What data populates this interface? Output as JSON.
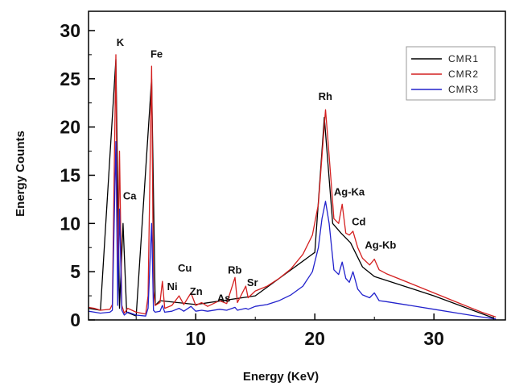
{
  "chart_data": {
    "type": "line",
    "title": "",
    "xlabel": "Energy (KeV)",
    "ylabel": "Energy Counts",
    "xlim": [
      1,
      36
    ],
    "ylim": [
      0,
      32
    ],
    "x_ticks": [
      10,
      20,
      30
    ],
    "y_ticks": [
      0,
      5,
      10,
      15,
      20,
      25,
      30
    ],
    "legend": {
      "position": "top-right",
      "entries": [
        "CMR1",
        "CMR2",
        "CMR3"
      ]
    },
    "colors": {
      "CMR1": "#000000",
      "CMR2": "#d42020",
      "CMR3": "#2222cc"
    },
    "series": [
      {
        "name": "CMR1",
        "x": [
          1,
          2,
          3.3,
          3.6,
          3.9,
          4.2,
          5,
          6.3,
          6.6,
          7,
          10,
          15,
          20,
          20.8,
          21.5,
          22.2,
          23,
          24,
          25,
          30,
          35
        ],
        "values": [
          1.2,
          1.0,
          27,
          1.2,
          10,
          0.8,
          0.4,
          25,
          1.5,
          2.0,
          1.6,
          2.5,
          7,
          21,
          10,
          9,
          8,
          5.5,
          4.5,
          2.5,
          0.2
        ]
      },
      {
        "name": "CMR2",
        "x": [
          1,
          1.5,
          2,
          2.8,
          3.0,
          3.3,
          3.45,
          3.6,
          3.8,
          4.0,
          4.3,
          5.0,
          5.8,
          6.0,
          6.3,
          6.45,
          6.6,
          7.0,
          7.2,
          7.4,
          8.0,
          8.6,
          9.0,
          9.6,
          10.0,
          10.5,
          11.0,
          12.0,
          12.6,
          13.3,
          13.5,
          14.2,
          14.4,
          15.0,
          16.0,
          17.0,
          18.0,
          19.0,
          19.8,
          20.3,
          20.6,
          20.9,
          21.2,
          21.6,
          22.0,
          22.3,
          22.6,
          22.9,
          23.2,
          23.6,
          24.0,
          24.6,
          25.0,
          25.4,
          26.0,
          28.0,
          30.0,
          32.0,
          34.0,
          35.2
        ],
        "values": [
          1.3,
          1.2,
          1.0,
          1.1,
          1.6,
          27.5,
          3.0,
          17.5,
          1.5,
          0.7,
          1.2,
          0.8,
          0.6,
          2.5,
          26.3,
          3.0,
          1.5,
          1.8,
          4.0,
          1.2,
          1.5,
          2.5,
          1.6,
          2.8,
          1.5,
          1.8,
          1.4,
          2.0,
          1.7,
          4.4,
          1.8,
          3.5,
          2.3,
          3.0,
          3.5,
          4.3,
          5.3,
          6.8,
          8.8,
          12.0,
          17.0,
          21.8,
          17.0,
          10.5,
          10.0,
          12.0,
          9.0,
          8.8,
          9.2,
          7.5,
          6.4,
          5.7,
          6.3,
          5.2,
          4.8,
          3.8,
          2.8,
          1.8,
          0.8,
          0.3
        ]
      },
      {
        "name": "CMR3",
        "x": [
          1,
          1.5,
          2,
          2.8,
          3.0,
          3.3,
          3.45,
          3.6,
          3.8,
          4.0,
          4.3,
          5.0,
          5.8,
          6.0,
          6.3,
          6.45,
          6.6,
          7.0,
          7.2,
          7.4,
          8.0,
          8.6,
          9.0,
          9.6,
          10.0,
          10.5,
          11.0,
          12.0,
          12.6,
          13.3,
          13.5,
          14.2,
          14.4,
          15.0,
          16.0,
          17.0,
          18.0,
          19.0,
          19.8,
          20.3,
          20.6,
          20.9,
          21.2,
          21.6,
          22.0,
          22.3,
          22.6,
          22.9,
          23.2,
          23.6,
          24.0,
          24.6,
          25.0,
          25.4,
          26.0,
          28.0,
          30.0,
          32.0,
          34.0,
          35.2
        ],
        "values": [
          0.9,
          0.8,
          0.7,
          0.8,
          1.0,
          18.5,
          1.5,
          11.5,
          1.0,
          0.5,
          0.8,
          0.5,
          0.4,
          1.2,
          10.0,
          1.0,
          0.8,
          0.9,
          1.5,
          0.8,
          0.9,
          1.2,
          0.9,
          1.4,
          0.9,
          1.0,
          0.9,
          1.1,
          1.0,
          1.3,
          1.0,
          1.2,
          1.1,
          1.4,
          1.6,
          2.0,
          2.6,
          3.5,
          5.0,
          7.5,
          10.5,
          12.3,
          10.0,
          5.2,
          4.7,
          6.0,
          4.3,
          3.9,
          5.0,
          3.2,
          2.6,
          2.3,
          2.8,
          2.0,
          1.9,
          1.5,
          1.1,
          0.7,
          0.3,
          0.1
        ]
      }
    ],
    "annotations": [
      {
        "text": "K",
        "x": 3.35,
        "y": 28.4
      },
      {
        "text": "Fe",
        "x": 6.2,
        "y": 27.2
      },
      {
        "text": "Ca",
        "x": 3.9,
        "y": 12.5
      },
      {
        "text": "Cu",
        "x": 8.5,
        "y": 5.0
      },
      {
        "text": "Ni",
        "x": 7.6,
        "y": 3.1
      },
      {
        "text": "Zn",
        "x": 9.5,
        "y": 2.6
      },
      {
        "text": "As",
        "x": 11.8,
        "y": 1.9
      },
      {
        "text": "Rb",
        "x": 12.7,
        "y": 4.8
      },
      {
        "text": "Sr",
        "x": 14.3,
        "y": 3.5
      },
      {
        "text": "Rh",
        "x": 20.3,
        "y": 22.8
      },
      {
        "text": "Ag-Ka",
        "x": 21.6,
        "y": 12.9
      },
      {
        "text": "Cd",
        "x": 23.1,
        "y": 9.8
      },
      {
        "text": "Ag-Kb",
        "x": 24.2,
        "y": 7.4
      }
    ]
  }
}
